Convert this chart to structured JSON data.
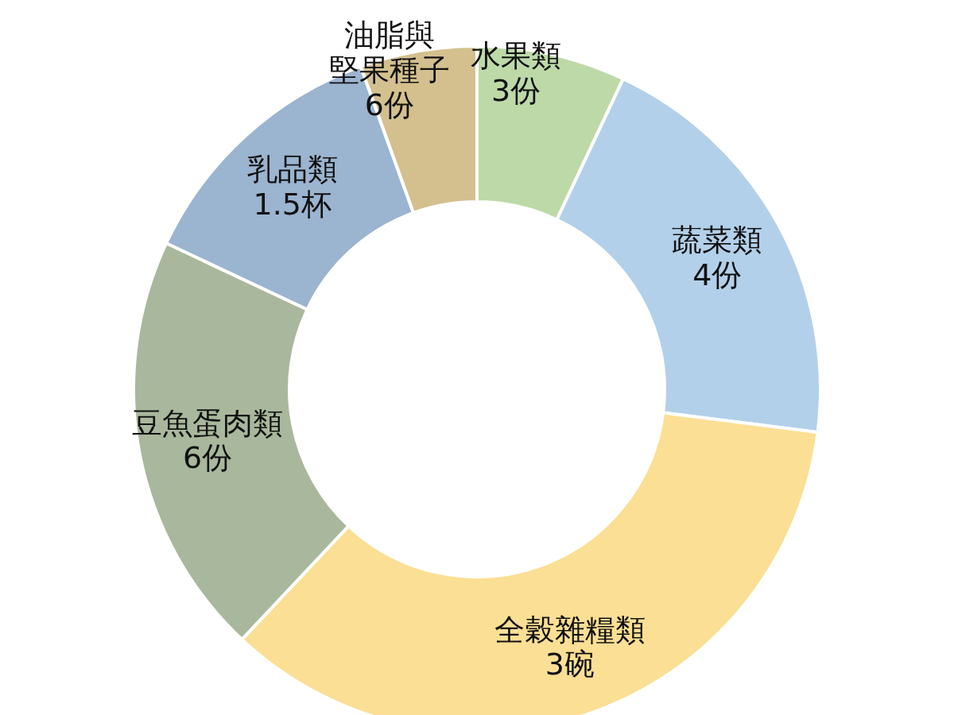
{
  "chart_data": {
    "type": "donut",
    "categories": [
      "水果類",
      "蔬菜類",
      "全穀雜糧類",
      "豆魚蛋肉類",
      "乳品類",
      "油脂與堅果種子"
    ],
    "values": [
      7,
      20,
      35,
      20,
      12.5,
      5.5
    ],
    "annotations": [
      "3份",
      "4份",
      "3碗",
      "6份",
      "1.5杯",
      "6份"
    ],
    "colors": [
      "#bdd9a8",
      "#b3d0ea",
      "#fbdf94",
      "#a9b89c",
      "#9bb4cf",
      "#d4c08e"
    ]
  }
}
